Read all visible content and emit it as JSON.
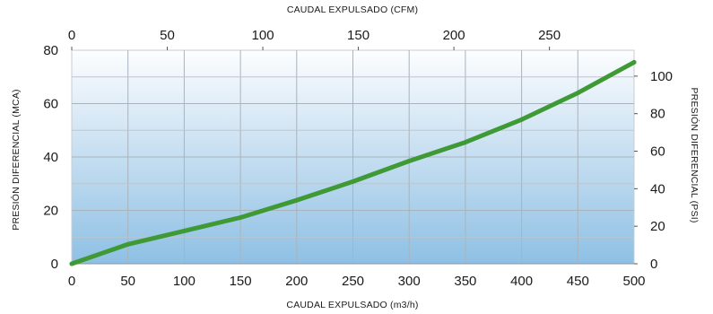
{
  "chart_data": {
    "type": "line",
    "title": "",
    "xlabel": "CAUDAL EXPULSADO (m3/h)",
    "x2label": "CAUDAL EXPULSADO (CFM)",
    "ylabel": "PRESIÓN DIFERENCIAL (MCA)",
    "y2label": "PRESIÓN DIFERENCIAL (PSI)",
    "xlim": [
      0,
      500
    ],
    "ylim": [
      0,
      80
    ],
    "x2lim": [
      0,
      294.3
    ],
    "y2lim": [
      0,
      113.8
    ],
    "xticks": [
      "0",
      "50",
      "100",
      "150",
      "200",
      "250",
      "300",
      "350",
      "400",
      "450",
      "500"
    ],
    "yticks": [
      "0",
      "20",
      "40",
      "60",
      "80"
    ],
    "x2ticks": [
      "0",
      "50",
      "100",
      "150",
      "200",
      "250"
    ],
    "y2ticks": [
      "0",
      "20",
      "40",
      "60",
      "80",
      "100"
    ],
    "grid": true,
    "background": "vertical gradient white to light blue",
    "line_color": "#3f9a36",
    "series": [
      {
        "name": "",
        "x": [
          0,
          50,
          100,
          150,
          200,
          250,
          300,
          350,
          400,
          450,
          500
        ],
        "y": [
          0,
          7.3,
          12.3,
          17.3,
          23.8,
          30.8,
          38.5,
          45.5,
          54,
          64,
          75.5
        ]
      }
    ]
  }
}
